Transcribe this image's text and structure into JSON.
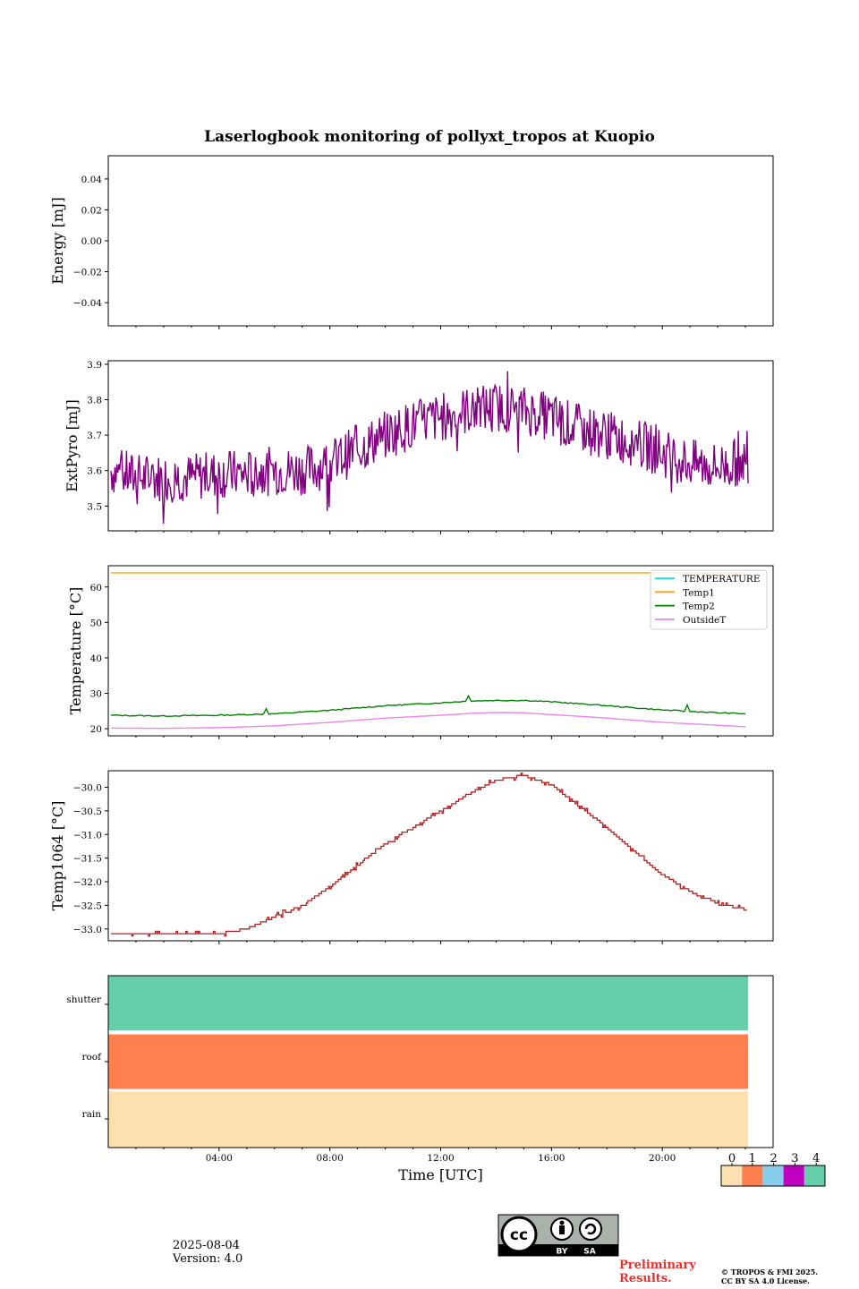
{
  "figure": {
    "title": "Laserlogbook monitoring of pollyxt_tropos at Kuopio",
    "date": "2025-08-04",
    "version": "Version: 4.0",
    "preliminary": [
      "Preliminary",
      "Results."
    ],
    "copyright": [
      "© TROPOS & FMI 2025.",
      "CC BY SA 4.0 License."
    ],
    "license_badge": {
      "by": "BY",
      "sa": "SA",
      "icon": "cc-by-sa-icon"
    }
  },
  "chart_data": [
    {
      "type": "line",
      "id": "energy",
      "ylabel": "Energy [mJ]",
      "ylim": [
        -0.055,
        0.055
      ],
      "yticks": [
        -0.04,
        -0.02,
        0.0,
        0.02,
        0.04
      ],
      "ytick_labels": [
        "−0.04",
        "−0.02",
        "0.00",
        "0.02",
        "0.04"
      ],
      "series": []
    },
    {
      "type": "line",
      "id": "extpyro",
      "ylabel": "ExtPyro [mJ]",
      "ylim": [
        3.43,
        3.91
      ],
      "yticks": [
        3.5,
        3.6,
        3.7,
        3.8,
        3.9
      ],
      "ytick_labels": [
        "3.5",
        "3.6",
        "3.7",
        "3.8",
        "3.9"
      ],
      "color": "#800080",
      "x_hours": [
        0.1,
        1,
        2,
        3,
        4,
        5,
        6,
        7,
        8,
        9,
        10,
        11,
        12,
        13,
        14,
        15,
        16,
        17,
        18,
        19,
        20,
        21,
        22,
        23.1
      ],
      "values": [
        3.6,
        3.58,
        3.58,
        3.58,
        3.59,
        3.59,
        3.6,
        3.6,
        3.62,
        3.66,
        3.7,
        3.73,
        3.75,
        3.77,
        3.78,
        3.77,
        3.75,
        3.72,
        3.7,
        3.68,
        3.65,
        3.62,
        3.61,
        3.63
      ]
    },
    {
      "type": "line",
      "id": "temperature",
      "ylabel": "Temperature [°C]",
      "ylim": [
        18,
        66
      ],
      "yticks": [
        20,
        30,
        40,
        50,
        60
      ],
      "ytick_labels": [
        "20",
        "30",
        "40",
        "50",
        "60"
      ],
      "legend": {
        "position": "upper right"
      },
      "x_hours": [
        0.1,
        2,
        4,
        6,
        8,
        10,
        12,
        13,
        14,
        15,
        16,
        18,
        20,
        22,
        23.1
      ],
      "series": [
        {
          "name": "TEMPERATURE",
          "color": "#00e5ee",
          "values": []
        },
        {
          "name": "Temp1",
          "color": "#ffa500",
          "values": [
            64,
            64,
            64,
            64,
            64,
            64,
            64,
            64,
            64,
            64,
            64,
            64,
            64,
            64,
            64
          ]
        },
        {
          "name": "Temp2",
          "color": "#008000",
          "values": [
            23.8,
            23.6,
            23.8,
            24.2,
            25.2,
            26.5,
            27.3,
            27.8,
            28.0,
            28.0,
            27.6,
            26.5,
            25.3,
            24.5,
            24.2
          ]
        },
        {
          "name": "OutsideT",
          "color": "#ee82ee",
          "values": [
            20.2,
            20.1,
            20.3,
            20.8,
            21.8,
            23.0,
            23.8,
            24.3,
            24.6,
            24.5,
            24.0,
            23.0,
            21.8,
            21.0,
            20.5
          ]
        }
      ]
    },
    {
      "type": "line",
      "id": "temp1064",
      "ylabel": "Temp1064 [°C]",
      "ylim": [
        -33.25,
        -29.65
      ],
      "yticks": [
        -33.0,
        -32.5,
        -32.0,
        -31.5,
        -31.0,
        -30.5,
        -30.0
      ],
      "ytick_labels": [
        "−33.0",
        "−32.5",
        "−32.0",
        "−31.5",
        "−31.0",
        "−30.5",
        "−30.0"
      ],
      "color": "#b22222",
      "x_hours": [
        0.1,
        1,
        2,
        3,
        4,
        4.5,
        5,
        6,
        7,
        8,
        9,
        10,
        11,
        12,
        13,
        14,
        15,
        16,
        17,
        18,
        19,
        20,
        21,
        22,
        23.1
      ],
      "values": [
        -33.1,
        -33.1,
        -33.1,
        -33.1,
        -33.1,
        -33.05,
        -33.0,
        -32.75,
        -32.5,
        -32.1,
        -31.65,
        -31.2,
        -30.85,
        -30.5,
        -30.15,
        -29.85,
        -29.75,
        -29.95,
        -30.4,
        -30.85,
        -31.35,
        -31.85,
        -32.2,
        -32.45,
        -32.6
      ]
    },
    {
      "type": "heatmap",
      "id": "status",
      "categories": [
        "rain",
        "roof",
        "shutter"
      ],
      "xlabel": "Time [UTC]",
      "xlim": [
        0,
        24
      ],
      "xticks": [
        4,
        8,
        12,
        16,
        20
      ],
      "xtick_labels": [
        "04:00",
        "08:00",
        "12:00",
        "16:00",
        "20:00"
      ],
      "data_end_hour": 23.1,
      "values": [
        0,
        1,
        4
      ],
      "colorbar": {
        "labels": [
          "0",
          "1",
          "2",
          "3",
          "4"
        ],
        "colors": [
          "#fde0b0",
          "#ff7f50",
          "#87ceeb",
          "#c000c0",
          "#66cdaa"
        ]
      }
    }
  ]
}
